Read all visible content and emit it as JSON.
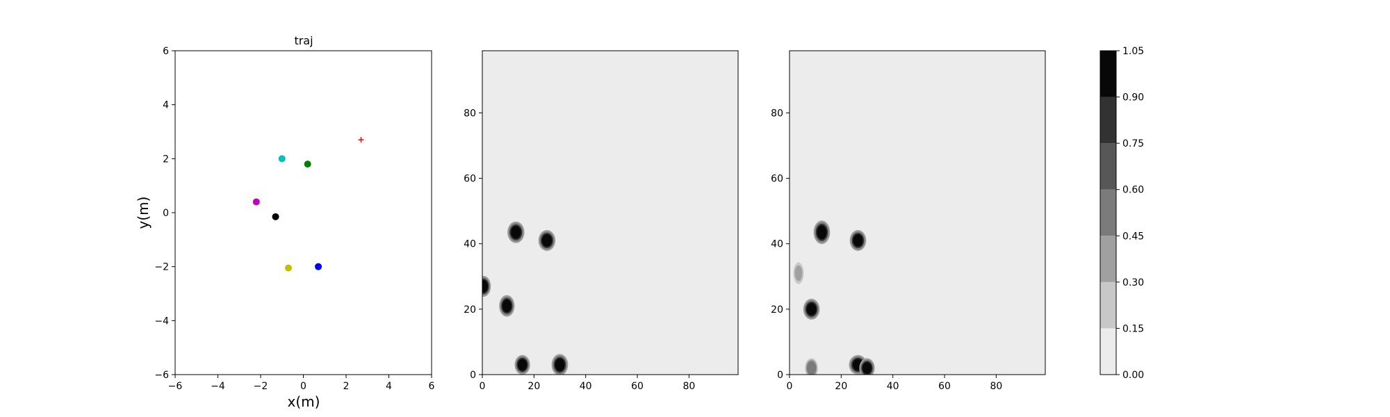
{
  "chart_data": [
    {
      "type": "scatter",
      "title": "traj",
      "xlabel": "x(m)",
      "ylabel": "y(m)",
      "xlim": [
        -6,
        6
      ],
      "ylim": [
        -6,
        6
      ],
      "xticks": [
        "−6",
        "−4",
        "−2",
        "0",
        "2",
        "4",
        "6"
      ],
      "yticks": [
        "−6",
        "−4",
        "−2",
        "0",
        "2",
        "4",
        "6"
      ],
      "grid": false,
      "points": [
        {
          "x": -1.0,
          "y": 2.0,
          "color": "#00bfbf",
          "marker": "circle"
        },
        {
          "x": 0.2,
          "y": 1.8,
          "color": "#008000",
          "marker": "circle"
        },
        {
          "x": -2.2,
          "y": 0.4,
          "color": "#bf00bf",
          "marker": "circle"
        },
        {
          "x": -1.3,
          "y": -0.15,
          "color": "#000000",
          "marker": "circle"
        },
        {
          "x": -0.7,
          "y": -2.05,
          "color": "#bfbf00",
          "marker": "circle"
        },
        {
          "x": 0.7,
          "y": -2.0,
          "color": "#0000ff",
          "marker": "circle"
        },
        {
          "x": 2.7,
          "y": 2.7,
          "color": "#ff0000",
          "marker": "plus"
        }
      ]
    },
    {
      "type": "heatmap",
      "title": "",
      "xlim": [
        0,
        99
      ],
      "ylim": [
        0,
        99
      ],
      "xticks": [
        "0",
        "20",
        "40",
        "60",
        "80"
      ],
      "yticks": [
        "0",
        "20",
        "40",
        "60",
        "80"
      ],
      "background_level": 0.05,
      "blobs": [
        {
          "x": 13,
          "y": 43.5,
          "rx": 3.3,
          "ry": 3.3,
          "level": 1.0
        },
        {
          "x": 25,
          "y": 41,
          "rx": 3.3,
          "ry": 3.2,
          "level": 1.0
        },
        {
          "x": 0.5,
          "y": 27,
          "rx": 2.8,
          "ry": 3.2,
          "level": 1.0
        },
        {
          "x": 9.5,
          "y": 21,
          "rx": 3.0,
          "ry": 3.3,
          "level": 1.0
        },
        {
          "x": 15.5,
          "y": 3,
          "rx": 3.0,
          "ry": 3.0,
          "level": 1.0
        },
        {
          "x": 30,
          "y": 3,
          "rx": 3.2,
          "ry": 3.3,
          "level": 1.0
        }
      ]
    },
    {
      "type": "heatmap",
      "title": "",
      "xlim": [
        0,
        99
      ],
      "ylim": [
        0,
        99
      ],
      "xticks": [
        "0",
        "20",
        "40",
        "60",
        "80"
      ],
      "yticks": [
        "0",
        "20",
        "40",
        "60",
        "80"
      ],
      "background_level": 0.05,
      "blobs": [
        {
          "x": 12.5,
          "y": 43.5,
          "rx": 3.2,
          "ry": 3.6,
          "level": 1.0
        },
        {
          "x": 26.5,
          "y": 41,
          "rx": 3.2,
          "ry": 3.2,
          "level": 1.0
        },
        {
          "x": 3.5,
          "y": 31,
          "rx": 2.0,
          "ry": 3.3,
          "level": 0.4
        },
        {
          "x": 8.5,
          "y": 20,
          "rx": 3.2,
          "ry": 3.2,
          "level": 1.0
        },
        {
          "x": 8.5,
          "y": 2,
          "rx": 2.5,
          "ry": 3.0,
          "level": 0.55
        },
        {
          "x": 26.5,
          "y": 3,
          "rx": 3.5,
          "ry": 3.0,
          "level": 1.0
        },
        {
          "x": 30,
          "y": 2,
          "rx": 3.0,
          "ry": 3.0,
          "level": 1.0
        }
      ]
    }
  ],
  "colorbar": {
    "ticks": [
      "0.00",
      "0.15",
      "0.30",
      "0.45",
      "0.60",
      "0.75",
      "0.90",
      "1.05"
    ],
    "levels": [
      0.0,
      0.15,
      0.3,
      0.45,
      0.6,
      0.75,
      0.9,
      1.05
    ],
    "colors": [
      "#ececec",
      "#c8c8c8",
      "#a0a0a0",
      "#7b7b7b",
      "#575757",
      "#323232",
      "#080808"
    ]
  }
}
